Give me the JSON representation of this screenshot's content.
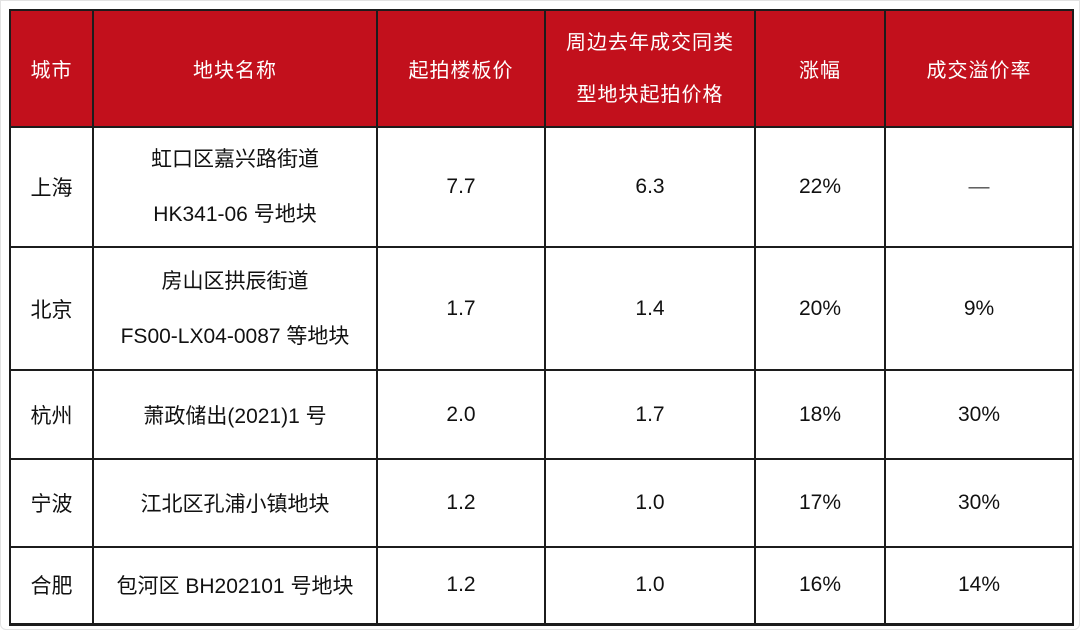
{
  "table": {
    "header_bg": "#c2101c",
    "header_text_color": "#ffffff",
    "border_color": "#1c1c1c",
    "columns": [
      {
        "label": "城市"
      },
      {
        "label": "地块名称"
      },
      {
        "label": "起拍楼板价"
      },
      {
        "label": "周边去年成交同类",
        "label_line2": "型地块起拍价格",
        "full_label": "周边去年成交同类型地块起拍价格"
      },
      {
        "label": "涨幅"
      },
      {
        "label": "成交溢价率"
      }
    ],
    "rows": [
      {
        "city": "上海",
        "plot_lines": [
          "虹口区嘉兴路街道",
          "HK341-06 号地块"
        ],
        "starting_floor_price": "7.7",
        "nearby_last_year_price": "6.3",
        "increase": "22%",
        "premium_rate": "—"
      },
      {
        "city": "北京",
        "plot_lines": [
          "房山区拱辰街道",
          "FS00-LX04-0087 等地块"
        ],
        "starting_floor_price": "1.7",
        "nearby_last_year_price": "1.4",
        "increase": "20%",
        "premium_rate": "9%"
      },
      {
        "city": "杭州",
        "plot_lines": [
          "萧政储出(2021)1 号"
        ],
        "starting_floor_price": "2.0",
        "nearby_last_year_price": "1.7",
        "increase": "18%",
        "premium_rate": "30%"
      },
      {
        "city": "宁波",
        "plot_lines": [
          "江北区孔浦小镇地块"
        ],
        "starting_floor_price": "1.2",
        "nearby_last_year_price": "1.0",
        "increase": "17%",
        "premium_rate": "30%"
      },
      {
        "city": "合肥",
        "plot_lines": [
          "包河区 BH202101 号地块"
        ],
        "starting_floor_price": "1.2",
        "nearby_last_year_price": "1.0",
        "increase": "16%",
        "premium_rate": "14%"
      }
    ]
  },
  "chart_data": {
    "type": "table",
    "title": "",
    "columns": [
      "城市",
      "地块名称",
      "起拍楼板价",
      "周边去年成交同类型地块起拍价格",
      "涨幅",
      "成交溢价率"
    ],
    "rows": [
      [
        "上海",
        "虹口区嘉兴路街道 HK341-06 号地块",
        "7.7",
        "6.3",
        "22%",
        "—"
      ],
      [
        "北京",
        "房山区拱辰街道 FS00-LX04-0087 等地块",
        "1.7",
        "1.4",
        "20%",
        "9%"
      ],
      [
        "杭州",
        "萧政储出(2021)1 号",
        "2.0",
        "1.7",
        "18%",
        "30%"
      ],
      [
        "宁波",
        "江北区孔浦小镇地块",
        "1.2",
        "1.0",
        "17%",
        "30%"
      ],
      [
        "合肥",
        "包河区 BH202101 号地块",
        "1.2",
        "1.0",
        "16%",
        "14%"
      ]
    ]
  }
}
